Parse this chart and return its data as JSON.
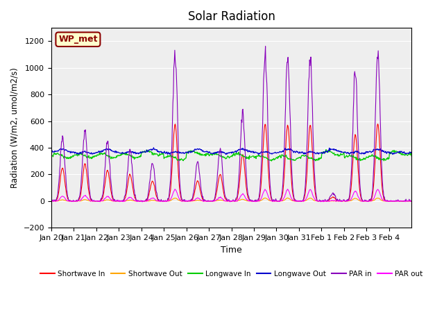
{
  "title": "Solar Radiation",
  "xlabel": "Time",
  "ylabel": "Radiation (W/m2, umol/m2/s)",
  "ylim": [
    -200,
    1300
  ],
  "yticks": [
    -200,
    0,
    200,
    400,
    600,
    800,
    1000,
    1200
  ],
  "date_labels": [
    "Jan 20",
    "Jan 21",
    "Jan 22",
    "Jan 23",
    "Jan 24",
    "Jan 25",
    "Jan 26",
    "Jan 27",
    "Jan 28",
    "Jan 29",
    "Jan 30",
    "Jan 31",
    "Feb 1",
    "Feb 2",
    "Feb 3",
    "Feb 4"
  ],
  "annotation_text": "WP_met",
  "annotation_color": "#8B0000",
  "annotation_bg": "#ffffcc",
  "par_in_scale": 1.9,
  "par_out_scale": 0.15,
  "day_sw_peaks": [
    250,
    280,
    230,
    200,
    150,
    580,
    150,
    200,
    350,
    580,
    570,
    570,
    30,
    500,
    580,
    0
  ],
  "legend_colors": {
    "Shortwave In": "#ff0000",
    "Shortwave Out": "#ffa500",
    "Longwave In": "#00cc00",
    "Longwave Out": "#0000cc",
    "PAR in": "#8800bb",
    "PAR out": "#ff00ff"
  }
}
